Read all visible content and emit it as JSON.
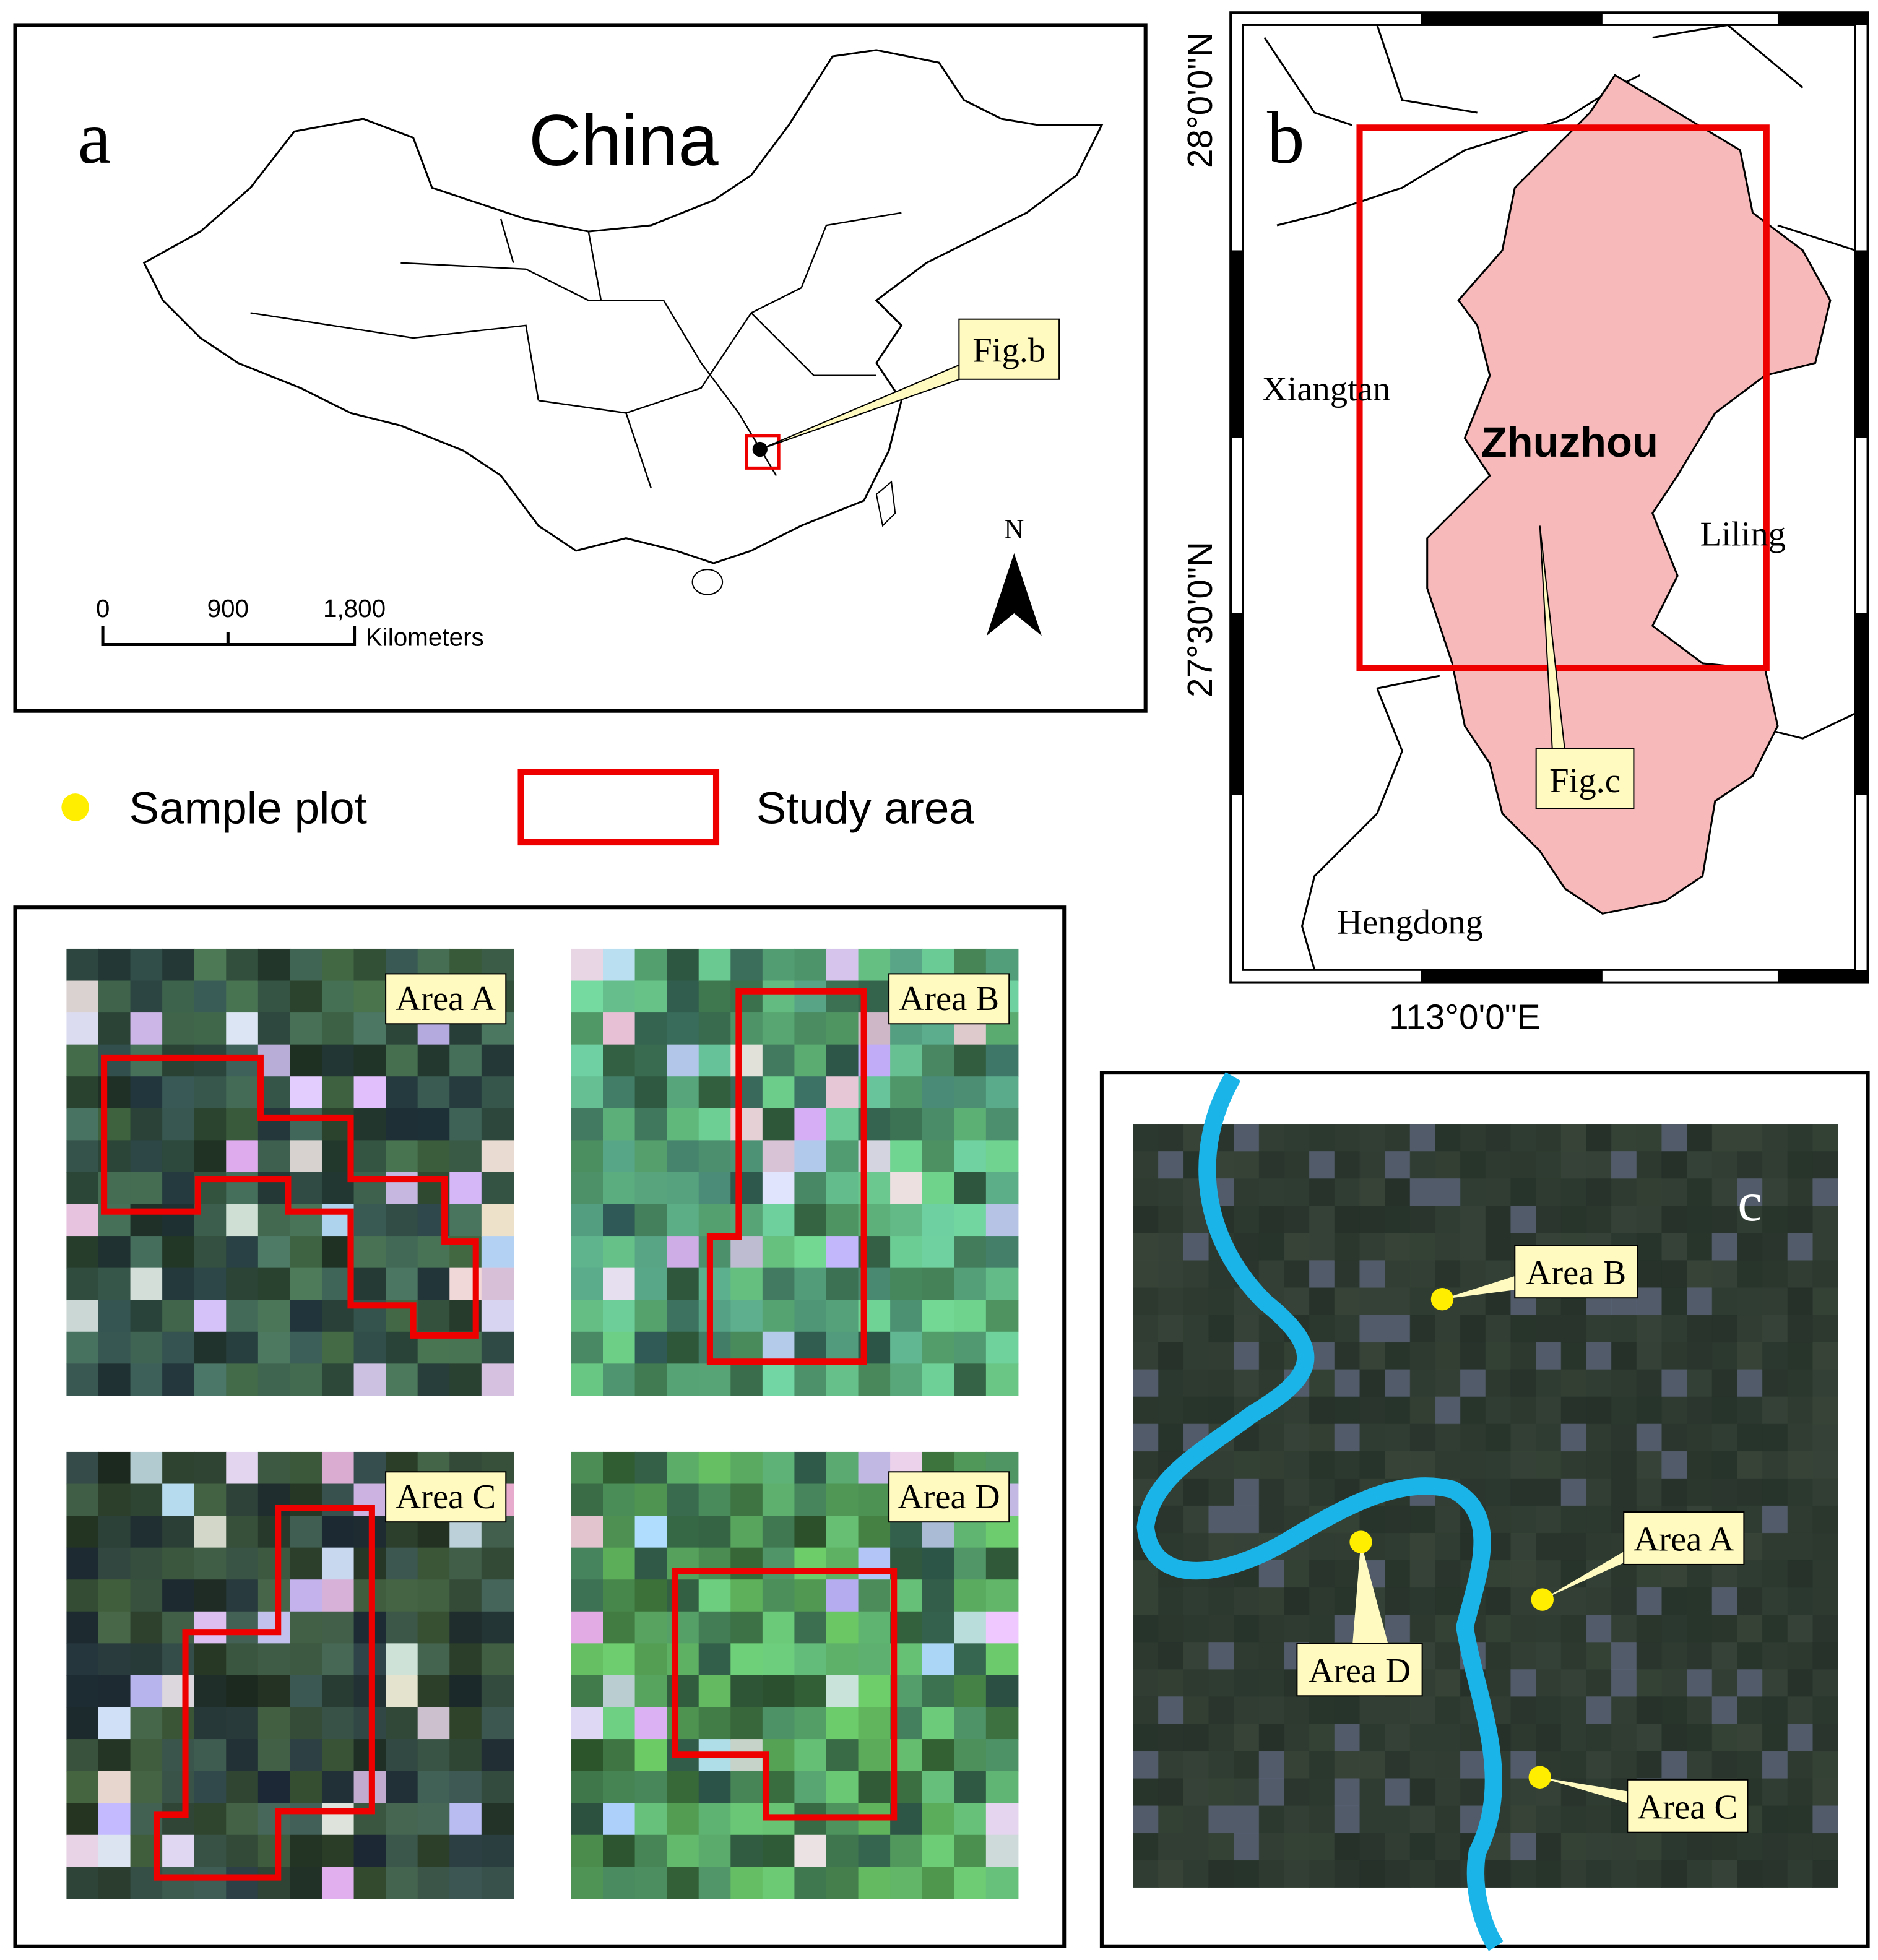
{
  "panel_a": {
    "label": "a",
    "title": "China",
    "callout": "Fig.b",
    "scale_ticks": [
      "0",
      "900",
      "1,800"
    ],
    "scale_unit": "Kilometers",
    "north": "N"
  },
  "legend": {
    "items": [
      "Sample plot",
      "Study area"
    ]
  },
  "panel_b": {
    "label": "b",
    "places": [
      "Xiangtan",
      "Zhuzhou",
      "Liling",
      "Hengdong"
    ],
    "callout": "Fig.c",
    "lat_labels": [
      "28°0'0\"N",
      "27°30'0\"N"
    ],
    "lon_label": "113°0'0\"E"
  },
  "panel_c": {
    "label": "c",
    "sites": [
      "Area A",
      "Area B",
      "Area C",
      "Area D"
    ]
  },
  "subsets": {
    "titles": [
      "Area A",
      "Area B",
      "Area C",
      "Area D"
    ]
  }
}
